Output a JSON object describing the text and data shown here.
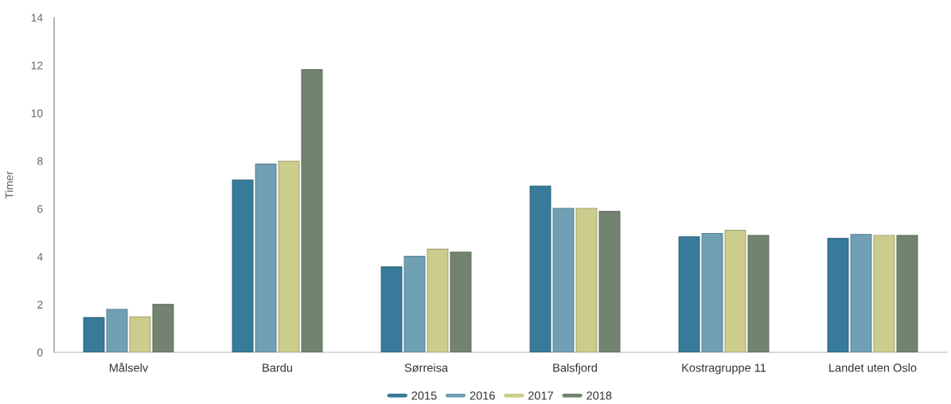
{
  "chart_data": {
    "type": "bar",
    "categories": [
      "Målselv",
      "Bardu",
      "Sørreisa",
      "Balsfjord",
      "Kostragruppe 11",
      "Landet uten Oslo"
    ],
    "series": [
      {
        "name": "2015",
        "color": "#377a99",
        "values": [
          1.45,
          7.21,
          3.57,
          6.95,
          4.83,
          4.76
        ]
      },
      {
        "name": "2016",
        "color": "#6fa0b4",
        "values": [
          1.79,
          7.87,
          4.01,
          6.02,
          4.97,
          4.93
        ]
      },
      {
        "name": "2017",
        "color": "#cccc8c",
        "values": [
          1.48,
          7.99,
          4.31,
          6.02,
          5.1,
          4.89
        ]
      },
      {
        "name": "2018",
        "color": "#728370",
        "values": [
          2.0,
          11.82,
          4.19,
          5.89,
          4.89,
          4.89
        ]
      }
    ],
    "ylabel": "Timer",
    "ylim": [
      0,
      14
    ],
    "yticks": [
      0,
      2,
      4,
      6,
      8,
      10,
      12,
      14
    ],
    "legend": "bottom",
    "grid": false
  }
}
